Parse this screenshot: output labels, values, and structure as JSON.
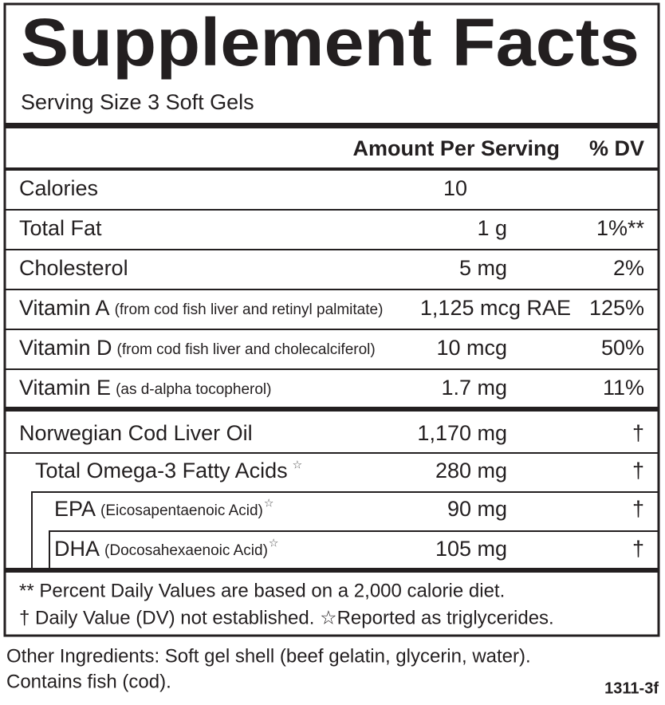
{
  "title": "Supplement Facts",
  "serving_size": "Serving Size 3 Soft Gels",
  "header": {
    "amount": "Amount Per Serving",
    "dv": "% DV"
  },
  "nutrients": [
    {
      "name": "Calories",
      "amount": "10"
    },
    {
      "name": "Total Fat",
      "amount": "1 g",
      "dv": "1%**"
    },
    {
      "name": "Cholesterol",
      "amount": "5 mg",
      "dv": "2%"
    },
    {
      "name": "Vitamin A",
      "note": "(from cod fish liver and retinyl palmitate)",
      "amount": "1,125 mcg RAE",
      "dv": "125%"
    },
    {
      "name": "Vitamin D",
      "note": "(from cod fish liver and cholecalciferol)",
      "amount": "10 mcg",
      "dv": "50%"
    },
    {
      "name": "Vitamin E",
      "note": "(as d-alpha tocopherol)",
      "amount": "1.7 mg",
      "dv": "11%"
    }
  ],
  "other_nutrients": [
    {
      "name": "Norwegian Cod Liver Oil",
      "amount": "1,170 mg",
      "dv": "†"
    },
    {
      "name": "Total Omega-3 Fatty Acids",
      "star": "☆",
      "amount": "280 mg",
      "dv": "†"
    },
    {
      "name": "EPA",
      "note": "(Eicosapentaenoic Acid)",
      "star": "☆",
      "amount": "90 mg",
      "dv": "†"
    },
    {
      "name": "DHA",
      "note": "(Docosahexaenoic Acid)",
      "star": "☆",
      "amount": "105 mg",
      "dv": "†"
    }
  ],
  "footnotes": [
    "** Percent Daily Values are based on a 2,000 calorie diet.",
    "† Daily Value (DV) not established. ☆Reported as triglycerides."
  ],
  "other_ingredients": [
    "Other Ingredients: Soft gel shell (beef gelatin, glycerin, water).",
    "Contains fish (cod)."
  ],
  "code": "1311-3f"
}
